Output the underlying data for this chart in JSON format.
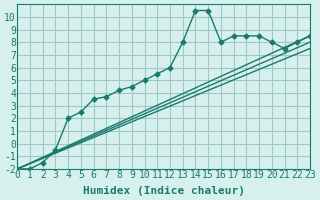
{
  "xlabel": "Humidex (Indice chaleur)",
  "ylabel": "",
  "bg_color": "#d6f0ee",
  "grid_color": "#a0c8c4",
  "line_color": "#1a7a6e",
  "xlim": [
    0,
    23
  ],
  "ylim": [
    -2,
    11
  ],
  "xticks": [
    0,
    1,
    2,
    3,
    4,
    5,
    6,
    7,
    8,
    9,
    10,
    11,
    12,
    13,
    14,
    15,
    16,
    17,
    18,
    19,
    20,
    21,
    22,
    23
  ],
  "yticks": [
    -2,
    -1,
    0,
    1,
    2,
    3,
    4,
    5,
    6,
    7,
    8,
    9,
    10
  ],
  "series1_x": [
    0,
    1,
    2,
    3,
    4,
    5,
    6,
    7,
    8,
    9,
    10,
    11,
    12,
    13,
    14,
    15,
    16,
    17,
    18,
    19,
    20,
    21,
    22,
    23
  ],
  "series1_y": [
    -2,
    -2,
    -1.5,
    -0.5,
    2,
    2.5,
    3.5,
    3.7,
    4.2,
    4.5,
    5,
    5.5,
    6,
    8,
    10.5,
    10.5,
    8,
    8.5,
    8.5,
    8.5,
    8,
    7.5,
    8,
    8.5
  ],
  "series2_x": [
    0,
    23
  ],
  "series2_y": [
    -2,
    8.5
  ],
  "series3_x": [
    0,
    23
  ],
  "series3_y": [
    -2,
    8.0
  ],
  "series4_x": [
    0,
    23
  ],
  "series4_y": [
    -2,
    7.5
  ],
  "font_size_axis": 7,
  "font_size_xlabel": 8,
  "marker": "D",
  "marker_size": 2.5
}
